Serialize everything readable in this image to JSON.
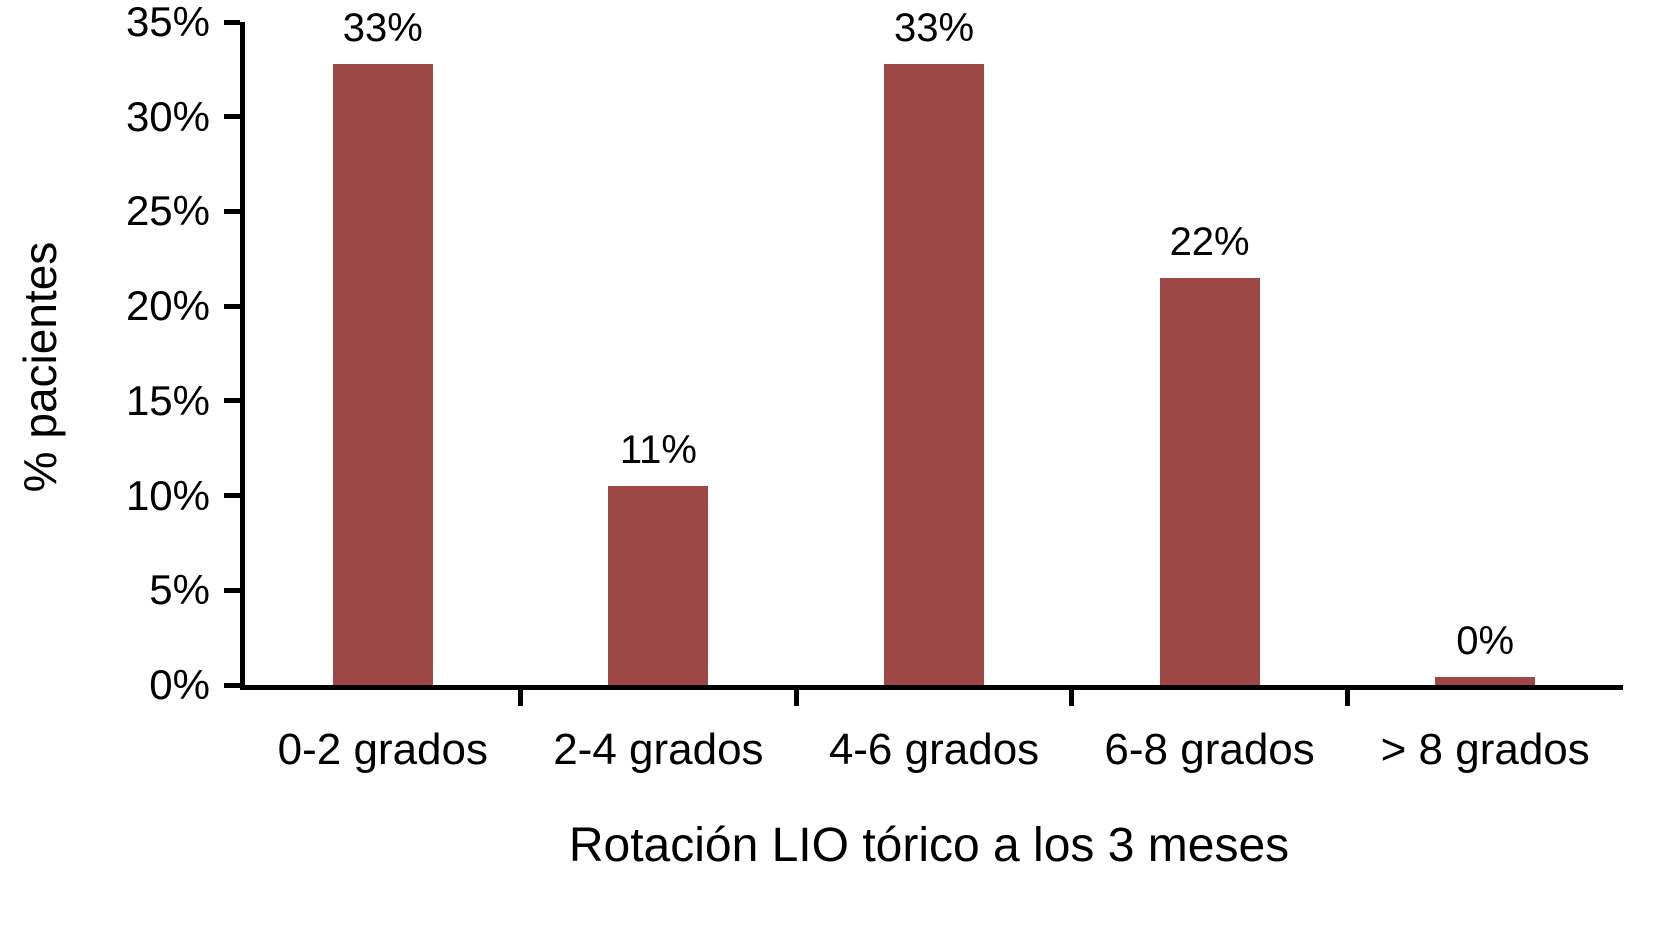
{
  "chart_data": {
    "type": "bar",
    "title": "",
    "xlabel": "Rotación LIO tórico a los 3 meses",
    "ylabel": "% pacientes",
    "categories": [
      "0-2 grados",
      "2-4 grados",
      "4-6 grados",
      "6-8 grados",
      "> 8 grados"
    ],
    "values": [
      32.8,
      10.5,
      32.8,
      21.5,
      0.4
    ],
    "value_labels": [
      "33%",
      "11%",
      "33%",
      "22%",
      "0%"
    ],
    "y_tick_labels": [
      "0%",
      "5%",
      "10%",
      "15%",
      "20%",
      "25%",
      "30%",
      "35%"
    ],
    "y_tick_values": [
      0,
      5,
      10,
      15,
      20,
      25,
      30,
      35
    ],
    "ylim": [
      0,
      35
    ],
    "grid": "off",
    "legend": "none",
    "bar_color": "#9e4747",
    "axis_color": "#000000"
  }
}
